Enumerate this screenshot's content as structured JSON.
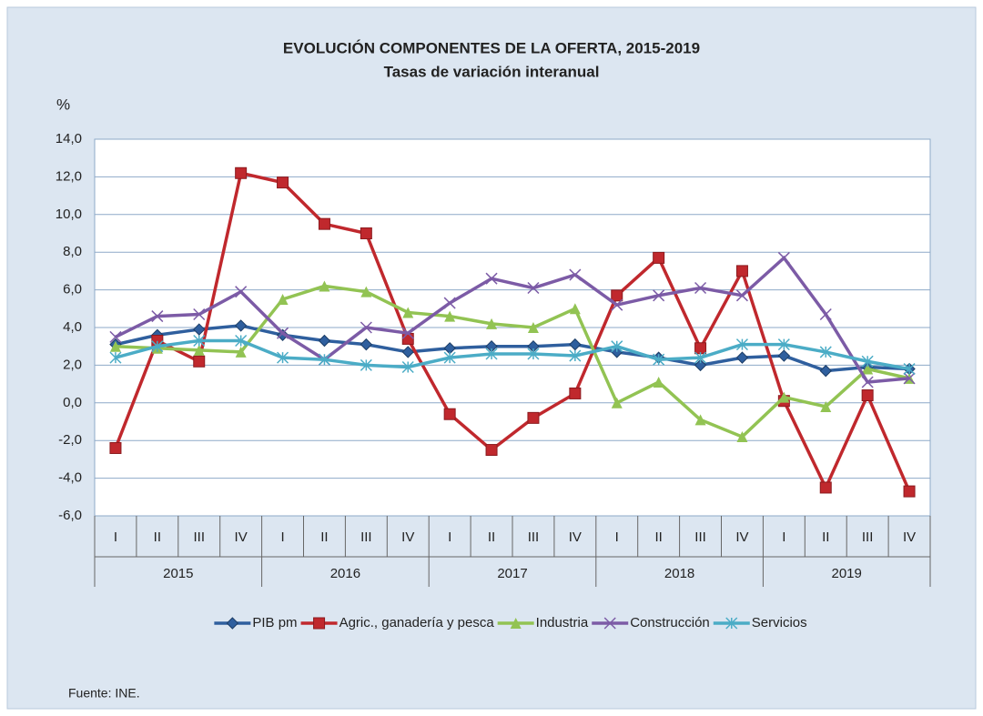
{
  "chart_data": {
    "type": "line",
    "title": "EVOLUCIÓN  COMPONENTES  DE LA OFERTA, 2015-2019",
    "subtitle": "Tasas de variación interanual",
    "y_label": "%",
    "source": "Fuente: INE.",
    "categories": [
      "I",
      "II",
      "III",
      "IV",
      "I",
      "II",
      "III",
      "IV",
      "I",
      "II",
      "III",
      "IV",
      "I",
      "II",
      "III",
      "IV",
      "I",
      "II",
      "III",
      "IV"
    ],
    "groups": [
      "2015",
      "2016",
      "2017",
      "2018",
      "2019"
    ],
    "ylim": [
      -6,
      14
    ],
    "yticks": [
      {
        "value": -6,
        "label": "-6,0"
      },
      {
        "value": -4,
        "label": "-4,0"
      },
      {
        "value": -2,
        "label": "-2,0"
      },
      {
        "value": 0,
        "label": "0,0"
      },
      {
        "value": 2,
        "label": "2,0"
      },
      {
        "value": 4,
        "label": "4,0"
      },
      {
        "value": 6,
        "label": "6,0"
      },
      {
        "value": 8,
        "label": "8,0"
      },
      {
        "value": 10,
        "label": "10,0"
      },
      {
        "value": 12,
        "label": "12,0"
      },
      {
        "value": 14,
        "label": "14,0"
      }
    ],
    "grid": true,
    "legend": "bottom",
    "series": [
      {
        "name": "PIB pm",
        "color": "#2f5f9e",
        "marker": "diamond",
        "values": [
          3.1,
          3.6,
          3.9,
          4.1,
          3.6,
          3.3,
          3.1,
          2.7,
          2.9,
          3.0,
          3.0,
          3.1,
          2.7,
          2.4,
          2.0,
          2.4,
          2.5,
          1.7,
          1.9,
          1.8
        ]
      },
      {
        "name": "Agric., ganadería y pesca",
        "color": "#c0282d",
        "marker": "square",
        "values": [
          -2.4,
          3.3,
          2.2,
          12.2,
          11.7,
          9.5,
          9.0,
          3.4,
          -0.6,
          -2.5,
          -0.8,
          0.5,
          5.7,
          7.7,
          2.9,
          7.0,
          0.1,
          -4.5,
          0.4,
          -4.7
        ]
      },
      {
        "name": "Industria",
        "color": "#92c353",
        "marker": "triangle",
        "values": [
          3.0,
          2.9,
          2.8,
          2.7,
          5.5,
          6.2,
          5.9,
          4.8,
          4.6,
          4.2,
          4.0,
          5.0,
          0.0,
          1.1,
          -0.9,
          -1.8,
          0.3,
          -0.2,
          1.8,
          1.3
        ]
      },
      {
        "name": "Construcción",
        "color": "#7c5ba6",
        "marker": "x",
        "values": [
          3.5,
          4.6,
          4.7,
          5.9,
          3.7,
          2.3,
          4.0,
          3.7,
          5.3,
          6.6,
          6.1,
          6.8,
          5.2,
          5.7,
          6.1,
          5.7,
          7.7,
          4.7,
          1.1,
          1.3
        ]
      },
      {
        "name": "Servicios",
        "color": "#4bacc6",
        "marker": "star",
        "values": [
          2.4,
          3.0,
          3.3,
          3.3,
          2.4,
          2.3,
          2.0,
          1.9,
          2.4,
          2.6,
          2.6,
          2.5,
          3.0,
          2.3,
          2.4,
          3.1,
          3.1,
          2.7,
          2.2,
          1.8
        ]
      }
    ]
  }
}
